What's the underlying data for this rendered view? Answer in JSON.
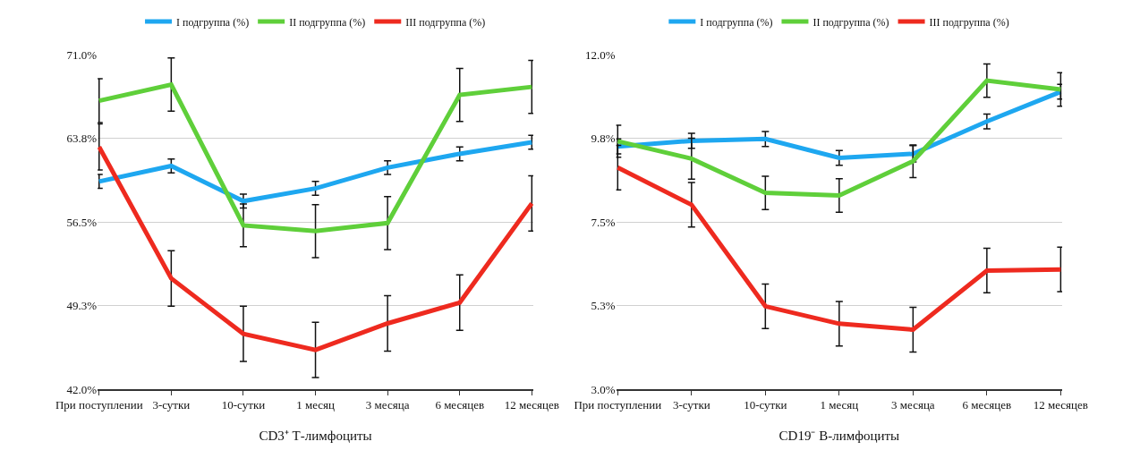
{
  "chart_data": [
    {
      "type": "line",
      "xlabel": "CD3⁺ Т-лимфоциты",
      "categories": [
        "При поступлении",
        "3-сутки",
        "10-сутки",
        "1 месяц",
        "3 месяца",
        "6 месяцев",
        "12 месяцев"
      ],
      "ylim": [
        42,
        71
      ],
      "yticks": [
        {
          "value": 42,
          "label": "42.0%"
        },
        {
          "value": 49.25,
          "label": "49.3%"
        },
        {
          "value": 56.5,
          "label": "56.5%"
        },
        {
          "value": 63.75,
          "label": "63.8%"
        },
        {
          "value": 71,
          "label": "71.0%"
        }
      ],
      "grid": "y",
      "legend": "top",
      "series": [
        {
          "name": "I подгруппа (%)",
          "color": "#1ea7f0",
          "values": [
            60.0,
            61.35,
            58.3,
            59.4,
            61.2,
            62.4,
            63.4
          ],
          "errors": [
            0.6,
            0.6,
            0.6,
            0.6,
            0.6,
            0.6,
            0.6
          ]
        },
        {
          "name": "II подгруппа (%)",
          "color": "#5fcf3a",
          "values": [
            67.0,
            68.4,
            56.2,
            55.7,
            56.4,
            67.5,
            68.2
          ],
          "errors": [
            1.9,
            2.3,
            1.85,
            2.3,
            2.3,
            2.3,
            2.3
          ]
        },
        {
          "name": "III подгруппа (%)",
          "color": "#ee2a1f",
          "values": [
            63.0,
            51.6,
            46.8,
            45.4,
            47.7,
            49.5,
            58.1
          ],
          "errors": [
            2.0,
            2.4,
            2.4,
            2.4,
            2.4,
            2.4,
            2.4
          ]
        }
      ]
    },
    {
      "type": "line",
      "xlabel": "CD19⁻ В-лимфоциты",
      "categories": [
        "При поступлении",
        "3-сутки",
        "10-сутки",
        "1 месяц",
        "3 месяца",
        "6 месяцев",
        "12 месяцев"
      ],
      "ylim": [
        3,
        12
      ],
      "yticks": [
        {
          "value": 3,
          "label": "3.0%"
        },
        {
          "value": 5.25,
          "label": "5.3%"
        },
        {
          "value": 7.5,
          "label": "7.5%"
        },
        {
          "value": 9.75,
          "label": "9.8%"
        },
        {
          "value": 12,
          "label": "12.0%"
        }
      ],
      "grid": "y",
      "legend": "top",
      "series": [
        {
          "name": "I подгруппа (%)",
          "color": "#1ea7f0",
          "values": [
            9.53,
            9.68,
            9.73,
            9.22,
            9.33,
            10.2,
            11.0
          ],
          "errors": [
            0.2,
            0.2,
            0.2,
            0.2,
            0.22,
            0.2,
            0.2
          ]
        },
        {
          "name": "II подгруппа (%)",
          "color": "#5fcf3a",
          "values": [
            9.67,
            9.2,
            8.28,
            8.21,
            9.13,
            11.3,
            11.06
          ],
          "errors": [
            0.43,
            0.55,
            0.45,
            0.45,
            0.44,
            0.45,
            0.45
          ]
        },
        {
          "name": "III подгруппа (%)",
          "color": "#ee2a1f",
          "values": [
            8.96,
            7.96,
            5.23,
            4.76,
            4.6,
            6.19,
            6.22
          ],
          "errors": [
            0.6,
            0.6,
            0.6,
            0.6,
            0.6,
            0.6,
            0.6
          ]
        }
      ]
    }
  ]
}
